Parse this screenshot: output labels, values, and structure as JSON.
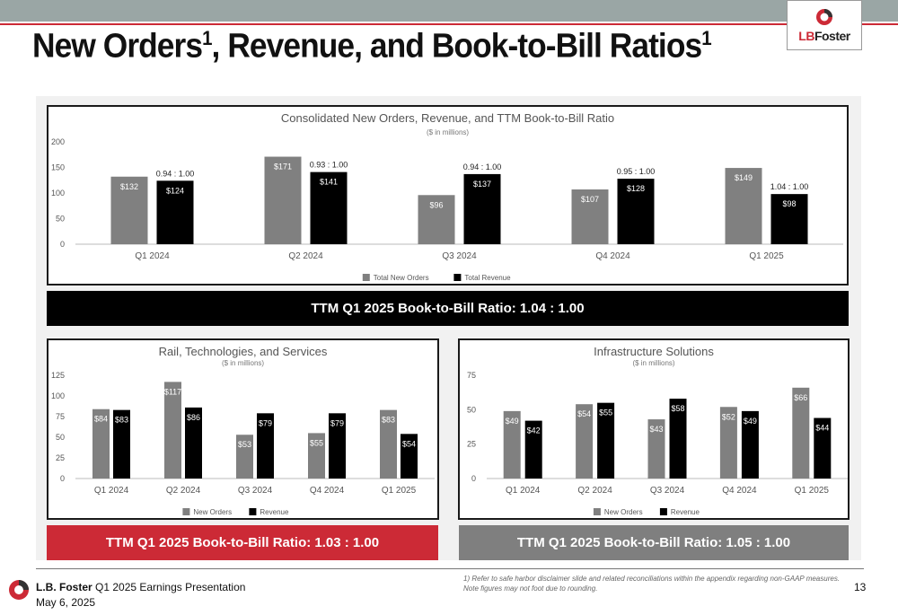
{
  "header": {
    "title": "New Orders",
    "title_sup1": "1",
    "title_rest": ", Revenue, and Book-to-Bill Ratios",
    "title_sup2": "1",
    "logo_text_a": "LB",
    "logo_text_b": "Foster"
  },
  "colors": {
    "orders": "#808080",
    "revenue": "#000000",
    "accent_red": "#cc2a36",
    "banner_gray": "#7f7f7f"
  },
  "chart_data": [
    {
      "id": "consolidated",
      "type": "bar",
      "title": "Consolidated New Orders, Revenue, and TTM Book-to-Bill Ratio",
      "subtitle": "($ in millions)",
      "categories": [
        "Q1 2024",
        "Q2 2024",
        "Q3 2024",
        "Q4 2024",
        "Q1 2025"
      ],
      "series": [
        {
          "name": "Total New Orders",
          "values": [
            132,
            171,
            96,
            107,
            149
          ],
          "labels": [
            "$132",
            "$171",
            "$96",
            "$107",
            "$149"
          ]
        },
        {
          "name": "Total Revenue",
          "values": [
            124,
            141,
            137,
            128,
            98
          ],
          "labels": [
            "$124",
            "$141",
            "$137",
            "$128",
            "$98"
          ]
        }
      ],
      "ratios": [
        "0.94 : 1.00",
        "0.93 : 1.00",
        "0.94 : 1.00",
        "0.95 : 1.00",
        "1.04 : 1.00"
      ],
      "ylim": [
        0,
        200
      ],
      "yticks": [
        0,
        50,
        100,
        150,
        200
      ],
      "legend": "bottom"
    },
    {
      "id": "rail",
      "type": "bar",
      "title": "Rail, Technologies, and Services",
      "subtitle": "($ in millions)",
      "categories": [
        "Q1 2024",
        "Q2 2024",
        "Q3 2024",
        "Q4 2024",
        "Q1 2025"
      ],
      "series": [
        {
          "name": "New Orders",
          "values": [
            84,
            117,
            53,
            55,
            83
          ],
          "labels": [
            "$84",
            "$117",
            "$53",
            "$55",
            "$83"
          ]
        },
        {
          "name": "Revenue",
          "values": [
            83,
            86,
            79,
            79,
            54
          ],
          "labels": [
            "$83",
            "$86",
            "$79",
            "$79",
            "$54"
          ]
        }
      ],
      "ylim": [
        0,
        125
      ],
      "yticks": [
        0,
        25,
        50,
        75,
        100,
        125
      ],
      "legend": "bottom"
    },
    {
      "id": "infra",
      "type": "bar",
      "title": "Infrastructure Solutions",
      "subtitle": "($ in millions)",
      "categories": [
        "Q1 2024",
        "Q2 2024",
        "Q3 2024",
        "Q4 2024",
        "Q1 2025"
      ],
      "series": [
        {
          "name": "New Orders",
          "values": [
            49,
            54,
            43,
            52,
            66
          ],
          "labels": [
            "$49",
            "$54",
            "$43",
            "$52",
            "$66"
          ]
        },
        {
          "name": "Revenue",
          "values": [
            42,
            55,
            58,
            49,
            44
          ],
          "labels": [
            "$42",
            "$55",
            "$58",
            "$49",
            "$44"
          ]
        }
      ],
      "ylim": [
        0,
        75
      ],
      "yticks": [
        0,
        25,
        50,
        75
      ],
      "legend": "bottom"
    }
  ],
  "banners": {
    "consolidated": "TTM Q1 2025 Book-to-Bill Ratio: 1.04 : 1.00",
    "rail": "TTM Q1 2025 Book-to-Bill Ratio: 1.03 : 1.00",
    "infra": "TTM Q1 2025 Book-to-Bill Ratio: 1.05 : 1.00"
  },
  "footer": {
    "company": "L.B. Foster",
    "presentation": " Q1 2025 Earnings Presentation",
    "date": "May 6, 2025",
    "note1": "1) Refer to safe harbor disclaimer slide and related reconciliations within the appendix regarding non-GAAP measures.",
    "note2": "Note figures may not foot due to rounding.",
    "page_number": "13"
  }
}
